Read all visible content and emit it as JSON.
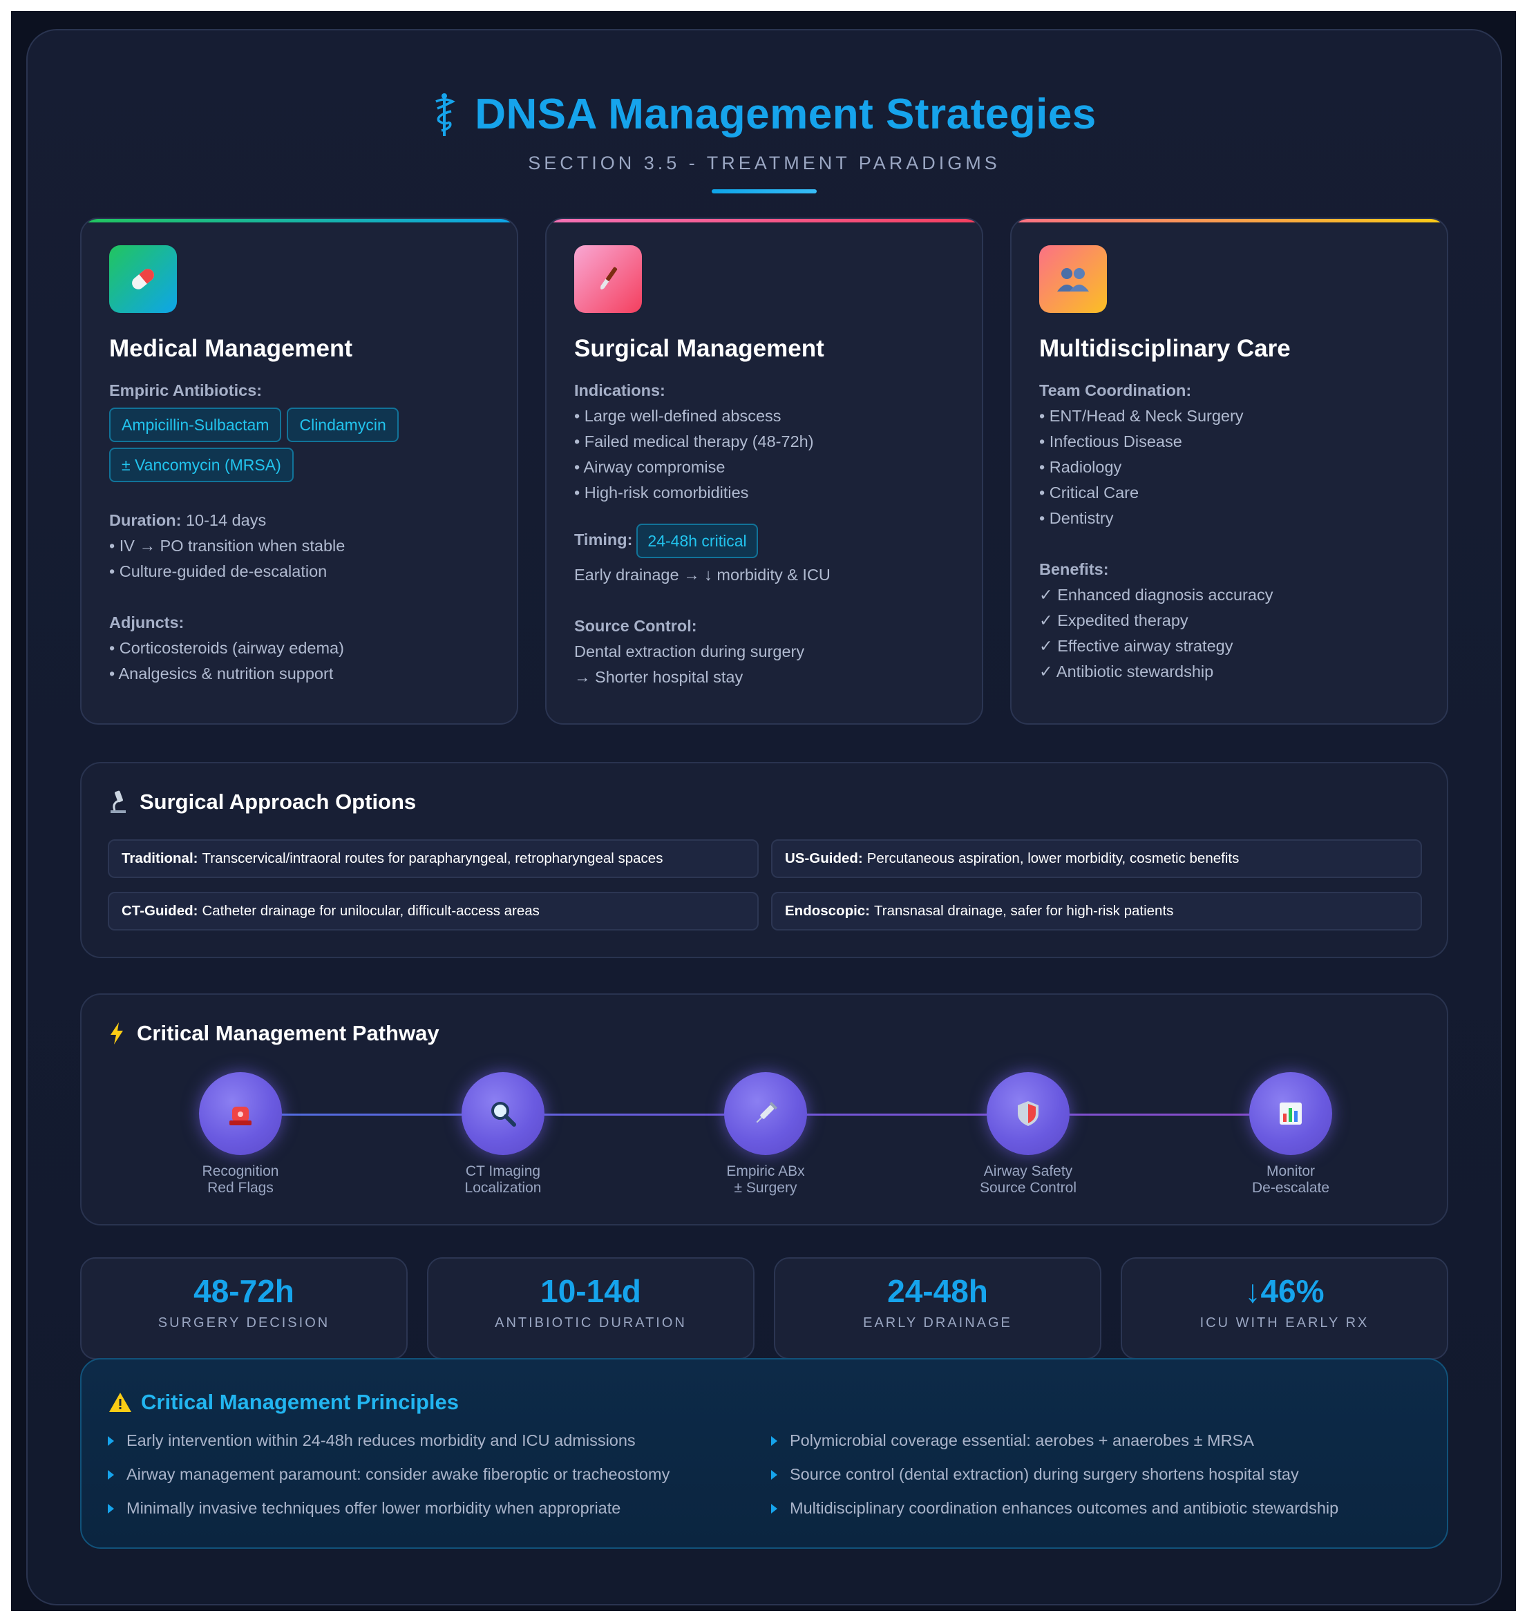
{
  "header": {
    "title": "DNSA Management Strategies",
    "subtitle": "SECTION 3.5 - TREATMENT PARADIGMS"
  },
  "cards": {
    "medical": {
      "icon": "pill-icon",
      "title": "Medical Management",
      "antibiotics_label": "Empiric Antibiotics:",
      "pills": [
        "Ampicillin-Sulbactam",
        "Clindamycin",
        "± Vancomycin (MRSA)"
      ],
      "duration_label": "Duration:",
      "duration_value": "10-14 days",
      "duration_items": [
        "• IV → PO transition when stable",
        "• Culture-guided de-escalation"
      ],
      "adjuncts_label": "Adjuncts:",
      "adjuncts_items": [
        "• Corticosteroids (airway edema)",
        "• Analgesics & nutrition support"
      ]
    },
    "surgical": {
      "icon": "scalpel-icon",
      "title": "Surgical Management",
      "indications_label": "Indications:",
      "indications": [
        "• Large well-defined abscess",
        "• Failed medical therapy (48-72h)",
        "• Airway compromise",
        "• High-risk comorbidities"
      ],
      "timing_label": "Timing:",
      "timing_pill": "24-48h critical",
      "timing_note": "Early drainage → ↓ morbidity & ICU",
      "source_label": "Source Control:",
      "source_items": [
        "Dental extraction during surgery",
        "→ Shorter hospital stay"
      ]
    },
    "multi": {
      "icon": "team-icon",
      "title": "Multidisciplinary Care",
      "team_label": "Team Coordination:",
      "team": [
        "• ENT/Head & Neck Surgery",
        "• Infectious Disease",
        "• Radiology",
        "• Critical Care",
        "• Dentistry"
      ],
      "benefits_label": "Benefits:",
      "benefits": [
        "✓ Enhanced diagnosis accuracy",
        "✓ Expedited therapy",
        "✓ Effective airway strategy",
        "✓ Antibiotic stewardship"
      ]
    }
  },
  "approach": {
    "title": "Surgical Approach Options",
    "items": [
      {
        "name": "Traditional:",
        "desc": "Transcervical/intraoral routes for parapharyngeal, retropharyngeal spaces"
      },
      {
        "name": "US-Guided:",
        "desc": "Percutaneous aspiration, lower morbidity, cosmetic benefits"
      },
      {
        "name": "CT-Guided:",
        "desc": "Catheter drainage for unilocular, difficult-access areas"
      },
      {
        "name": "Endoscopic:",
        "desc": "Transnasal drainage, safer for high-risk patients"
      }
    ]
  },
  "pathway": {
    "title": "Critical Management Pathway",
    "steps": [
      {
        "icon": "siren-icon",
        "line1": "Recognition",
        "line2": "Red Flags"
      },
      {
        "icon": "magnifier-icon",
        "line1": "CT Imaging",
        "line2": "Localization"
      },
      {
        "icon": "syringe-icon",
        "line1": "Empiric ABx",
        "line2": "± Surgery"
      },
      {
        "icon": "shield-icon",
        "line1": "Airway Safety",
        "line2": "Source Control"
      },
      {
        "icon": "bar-chart-icon",
        "line1": "Monitor",
        "line2": "De-escalate"
      }
    ]
  },
  "stats": [
    {
      "value": "48-72h",
      "label": "SURGERY DECISION"
    },
    {
      "value": "10-14d",
      "label": "ANTIBIOTIC DURATION"
    },
    {
      "value": "24-48h",
      "label": "EARLY DRAINAGE"
    },
    {
      "value": "↓46%",
      "label": "ICU WITH EARLY RX"
    }
  ],
  "principles": {
    "title": "Critical Management Principles",
    "left": [
      "Early intervention within 24-48h reduces morbidity and ICU admissions",
      "Airway management paramount: consider awake fiberoptic or tracheostomy",
      "Minimally invasive techniques offer lower morbidity when appropriate"
    ],
    "right": [
      "Polymicrobial coverage essential: aerobes + anaerobes ± MRSA",
      "Source control (dental extraction) during surgery shortens hospital stay",
      "Multidisciplinary coordination enhances outcomes and antibiotic stewardship"
    ]
  },
  "colors": {
    "accent": "#16a4ec",
    "background": "#141b30",
    "medical_gradient": [
      "#22c55e",
      "#0ea5e9"
    ],
    "surgical_gradient": [
      "#f472b6",
      "#f43f5e"
    ],
    "multi_gradient": [
      "#fb7185",
      "#facc15"
    ]
  }
}
